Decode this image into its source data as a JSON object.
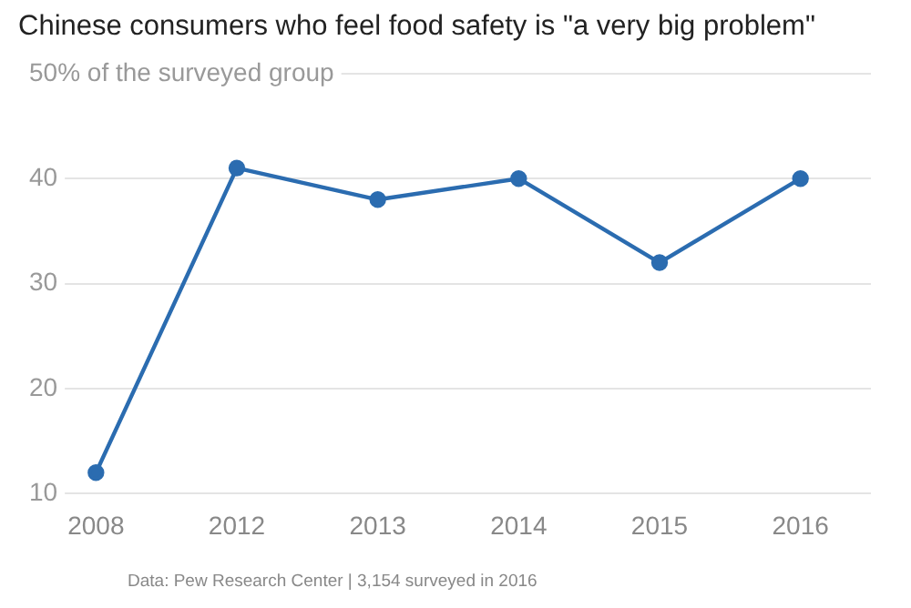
{
  "chart_data": {
    "type": "line",
    "title": "Chinese consumers who feel food safety is \"a very big problem\"",
    "categories": [
      "2008",
      "2012",
      "2013",
      "2014",
      "2015",
      "2016"
    ],
    "series": [
      {
        "color": "#2b6cb0",
        "values": [
          12,
          41,
          38,
          40,
          32,
          40
        ]
      }
    ],
    "ylim": [
      10,
      50
    ],
    "yticks": [
      10,
      20,
      30,
      40,
      {
        "value": 50,
        "label": "50% of the surveyed group"
      }
    ],
    "grid": "y",
    "legend": false,
    "marker": "circle",
    "annotations": [
      "Data: Pew Research Center | 3,154 surveyed in 2016"
    ]
  }
}
